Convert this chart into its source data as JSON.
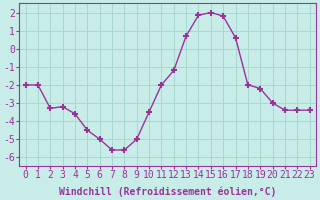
{
  "x": [
    0,
    1,
    2,
    3,
    4,
    5,
    6,
    7,
    8,
    9,
    10,
    11,
    12,
    13,
    14,
    15,
    16,
    17,
    18,
    19,
    20,
    21,
    22,
    23
  ],
  "y": [
    -2.0,
    -2.0,
    -3.3,
    -3.2,
    -3.6,
    -4.5,
    -5.0,
    -5.6,
    -5.6,
    -5.0,
    -3.5,
    -2.0,
    -1.2,
    0.7,
    1.85,
    2.0,
    1.8,
    0.6,
    -2.0,
    -2.2,
    -3.0,
    -3.4,
    -3.4,
    -3.4
  ],
  "line_color": "#993399",
  "marker": "+",
  "marker_size": 5,
  "marker_lw": 1.5,
  "line_width": 1.0,
  "bg_color": "#c8ede8",
  "grid_color": "#aad8d0",
  "xlabel": "Windchill (Refroidissement éolien,°C)",
  "xlabel_fontsize": 7,
  "tick_fontsize": 7,
  "xlim": [
    -0.5,
    23.5
  ],
  "ylim": [
    -6.5,
    2.5
  ],
  "yticks": [
    -6,
    -5,
    -4,
    -3,
    -2,
    -1,
    0,
    1,
    2
  ],
  "xtick_labels": [
    "0",
    "1",
    "2",
    "3",
    "4",
    "5",
    "6",
    "7",
    "8",
    "9",
    "10",
    "11",
    "12",
    "13",
    "14",
    "15",
    "16",
    "17",
    "18",
    "19",
    "20",
    "21",
    "22",
    "23"
  ]
}
